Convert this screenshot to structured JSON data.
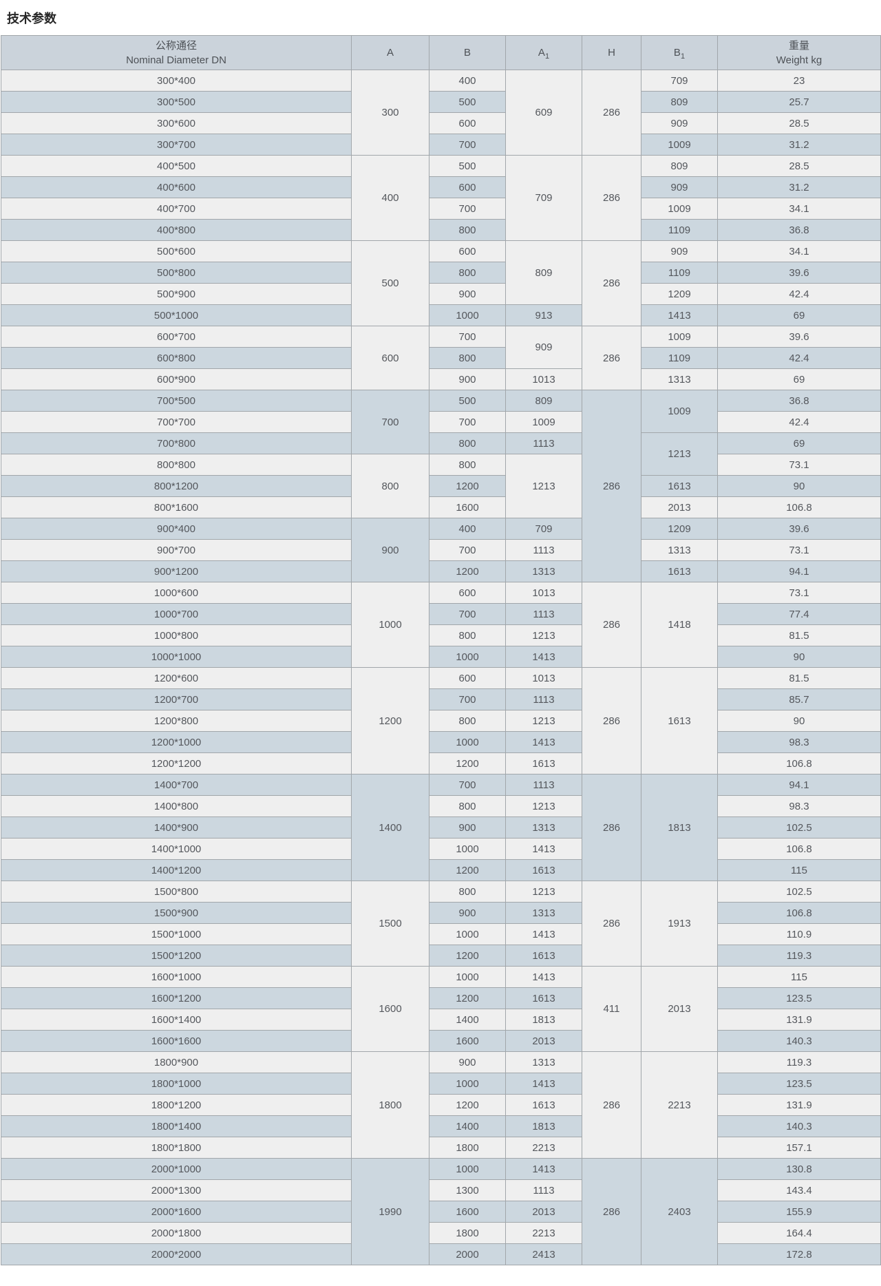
{
  "page_title": "技术参数",
  "colors": {
    "row_light": "#efefef",
    "row_dark": "#ccd7df",
    "header_bg": "#cbd3db",
    "border": "#a1a6aa",
    "text": "#54575c"
  },
  "table": {
    "headers": [
      {
        "line1": "公称通径",
        "line2": "Nominal Diameter DN"
      },
      {
        "label": "A"
      },
      {
        "label": "B"
      },
      {
        "label": "A",
        "sub": "1"
      },
      {
        "label": "H"
      },
      {
        "label": "B",
        "sub": "1"
      },
      {
        "line1": "重量",
        "line2": "Weight kg"
      }
    ],
    "rows": [
      {
        "cells": [
          {
            "v": "300*400"
          },
          {
            "v": 300,
            "rs": 4
          },
          {
            "v": 400
          },
          {
            "v": 609,
            "rs": 4
          },
          {
            "v": 286,
            "rs": 4
          },
          {
            "v": 709
          },
          {
            "v": 23
          }
        ]
      },
      {
        "cells": [
          {
            "v": "300*500"
          },
          {
            "v": 500
          },
          {
            "v": 809
          },
          {
            "v": 25.7
          }
        ]
      },
      {
        "cells": [
          {
            "v": "300*600"
          },
          {
            "v": 600
          },
          {
            "v": 909
          },
          {
            "v": 28.5
          }
        ]
      },
      {
        "cells": [
          {
            "v": "300*700"
          },
          {
            "v": 700
          },
          {
            "v": 1009
          },
          {
            "v": 31.2
          }
        ]
      },
      {
        "cells": [
          {
            "v": "400*500"
          },
          {
            "v": 400,
            "rs": 4
          },
          {
            "v": 500
          },
          {
            "v": 709,
            "rs": 4
          },
          {
            "v": 286,
            "rs": 4
          },
          {
            "v": 809
          },
          {
            "v": 28.5
          }
        ]
      },
      {
        "cells": [
          {
            "v": "400*600"
          },
          {
            "v": 600
          },
          {
            "v": 909
          },
          {
            "v": 31.2
          }
        ]
      },
      {
        "cells": [
          {
            "v": "400*700"
          },
          {
            "v": 700
          },
          {
            "v": 1009
          },
          {
            "v": 34.1
          }
        ]
      },
      {
        "cells": [
          {
            "v": "400*800"
          },
          {
            "v": 800
          },
          {
            "v": 1109
          },
          {
            "v": 36.8
          }
        ]
      },
      {
        "cells": [
          {
            "v": "500*600"
          },
          {
            "v": 500,
            "rs": 4
          },
          {
            "v": 600
          },
          {
            "v": 809,
            "rs": 3
          },
          {
            "v": 286,
            "rs": 4
          },
          {
            "v": 909
          },
          {
            "v": 34.1
          }
        ]
      },
      {
        "cells": [
          {
            "v": "500*800"
          },
          {
            "v": 800
          },
          {
            "v": 1109
          },
          {
            "v": 39.6
          }
        ]
      },
      {
        "cells": [
          {
            "v": "500*900"
          },
          {
            "v": 900
          },
          {
            "v": 1209
          },
          {
            "v": 42.4
          }
        ]
      },
      {
        "cells": [
          {
            "v": "500*1000"
          },
          {
            "v": 1000
          },
          {
            "v": 913
          },
          {
            "v": 1413
          },
          {
            "v": 69
          }
        ]
      },
      {
        "cells": [
          {
            "v": "600*700"
          },
          {
            "v": 600,
            "rs": 3
          },
          {
            "v": 700
          },
          {
            "v": 909,
            "rs": 2
          },
          {
            "v": 286,
            "rs": 3
          },
          {
            "v": 1009
          },
          {
            "v": 39.6
          }
        ]
      },
      {
        "cells": [
          {
            "v": "600*800"
          },
          {
            "v": 800
          },
          {
            "v": 1109
          },
          {
            "v": 42.4
          }
        ]
      },
      {
        "cells": [
          {
            "v": "600*900"
          },
          {
            "v": 900
          },
          {
            "v": 1013
          },
          {
            "v": 1313
          },
          {
            "v": 69
          }
        ]
      },
      {
        "cells": [
          {
            "v": "700*500"
          },
          {
            "v": 700,
            "rs": 3
          },
          {
            "v": 500
          },
          {
            "v": 809
          },
          {
            "v": 286,
            "rs": 9
          },
          {
            "v": 1009,
            "rs": 2
          },
          {
            "v": 36.8
          }
        ]
      },
      {
        "cells": [
          {
            "v": "700*700"
          },
          {
            "v": 700
          },
          {
            "v": 1009
          },
          {
            "v": 42.4
          }
        ]
      },
      {
        "cells": [
          {
            "v": "700*800"
          },
          {
            "v": 800
          },
          {
            "v": 1113
          },
          {
            "v": 1213,
            "rs": 2
          },
          {
            "v": 69
          }
        ]
      },
      {
        "cells": [
          {
            "v": "800*800"
          },
          {
            "v": 800,
            "rs": 3
          },
          {
            "v": 800
          },
          {
            "v": 1213,
            "rs": 3
          },
          {
            "v": 73.1
          }
        ]
      },
      {
        "cells": [
          {
            "v": "800*1200"
          },
          {
            "v": 1200
          },
          {
            "v": 1613
          },
          {
            "v": 90
          }
        ]
      },
      {
        "cells": [
          {
            "v": "800*1600"
          },
          {
            "v": 1600
          },
          {
            "v": 2013
          },
          {
            "v": 106.8
          }
        ]
      },
      {
        "cells": [
          {
            "v": "900*400"
          },
          {
            "v": 900,
            "rs": 3
          },
          {
            "v": 400
          },
          {
            "v": 709
          },
          {
            "v": 1209
          },
          {
            "v": 39.6
          }
        ]
      },
      {
        "cells": [
          {
            "v": "900*700"
          },
          {
            "v": 700
          },
          {
            "v": 1113
          },
          {
            "v": 1313
          },
          {
            "v": 73.1
          }
        ]
      },
      {
        "cells": [
          {
            "v": "900*1200"
          },
          {
            "v": 1200
          },
          {
            "v": 1313
          },
          {
            "v": 1613
          },
          {
            "v": 94.1
          }
        ]
      },
      {
        "cells": [
          {
            "v": "1000*600"
          },
          {
            "v": 1000,
            "rs": 4
          },
          {
            "v": 600
          },
          {
            "v": 1013
          },
          {
            "v": 286,
            "rs": 4
          },
          {
            "v": 1418,
            "rs": 4
          },
          {
            "v": 73.1
          }
        ]
      },
      {
        "cells": [
          {
            "v": "1000*700"
          },
          {
            "v": 700
          },
          {
            "v": 1113
          },
          {
            "v": 77.4
          }
        ]
      },
      {
        "cells": [
          {
            "v": "1000*800"
          },
          {
            "v": 800
          },
          {
            "v": 1213
          },
          {
            "v": 81.5
          }
        ]
      },
      {
        "cells": [
          {
            "v": "1000*1000"
          },
          {
            "v": 1000
          },
          {
            "v": 1413
          },
          {
            "v": 90
          }
        ]
      },
      {
        "cells": [
          {
            "v": "1200*600"
          },
          {
            "v": 1200,
            "rs": 5
          },
          {
            "v": 600
          },
          {
            "v": 1013
          },
          {
            "v": 286,
            "rs": 5
          },
          {
            "v": 1613,
            "rs": 5
          },
          {
            "v": 81.5
          }
        ]
      },
      {
        "cells": [
          {
            "v": "1200*700"
          },
          {
            "v": 700
          },
          {
            "v": 1113
          },
          {
            "v": 85.7
          }
        ]
      },
      {
        "cells": [
          {
            "v": "1200*800"
          },
          {
            "v": 800
          },
          {
            "v": 1213
          },
          {
            "v": 90
          }
        ]
      },
      {
        "cells": [
          {
            "v": "1200*1000"
          },
          {
            "v": 1000
          },
          {
            "v": 1413
          },
          {
            "v": 98.3
          }
        ]
      },
      {
        "cells": [
          {
            "v": "1200*1200"
          },
          {
            "v": 1200
          },
          {
            "v": 1613
          },
          {
            "v": 106.8
          }
        ]
      },
      {
        "cells": [
          {
            "v": "1400*700"
          },
          {
            "v": 1400,
            "rs": 5
          },
          {
            "v": 700
          },
          {
            "v": 1113
          },
          {
            "v": 286,
            "rs": 5
          },
          {
            "v": 1813,
            "rs": 5
          },
          {
            "v": 94.1
          }
        ]
      },
      {
        "cells": [
          {
            "v": "1400*800"
          },
          {
            "v": 800
          },
          {
            "v": 1213
          },
          {
            "v": 98.3
          }
        ]
      },
      {
        "cells": [
          {
            "v": "1400*900"
          },
          {
            "v": 900
          },
          {
            "v": 1313
          },
          {
            "v": 102.5
          }
        ]
      },
      {
        "cells": [
          {
            "v": "1400*1000"
          },
          {
            "v": 1000
          },
          {
            "v": 1413
          },
          {
            "v": 106.8
          }
        ]
      },
      {
        "cells": [
          {
            "v": "1400*1200"
          },
          {
            "v": 1200
          },
          {
            "v": 1613
          },
          {
            "v": 115
          }
        ]
      },
      {
        "cells": [
          {
            "v": "1500*800"
          },
          {
            "v": 1500,
            "rs": 4
          },
          {
            "v": 800
          },
          {
            "v": 1213
          },
          {
            "v": 286,
            "rs": 4
          },
          {
            "v": 1913,
            "rs": 4
          },
          {
            "v": 102.5
          }
        ]
      },
      {
        "cells": [
          {
            "v": "1500*900"
          },
          {
            "v": 900
          },
          {
            "v": 1313
          },
          {
            "v": 106.8
          }
        ]
      },
      {
        "cells": [
          {
            "v": "1500*1000"
          },
          {
            "v": 1000
          },
          {
            "v": 1413
          },
          {
            "v": 110.9
          }
        ]
      },
      {
        "cells": [
          {
            "v": "1500*1200"
          },
          {
            "v": 1200
          },
          {
            "v": 1613
          },
          {
            "v": 119.3
          }
        ]
      },
      {
        "cells": [
          {
            "v": "1600*1000"
          },
          {
            "v": 1600,
            "rs": 4
          },
          {
            "v": 1000
          },
          {
            "v": 1413
          },
          {
            "v": 411,
            "rs": 4
          },
          {
            "v": 2013,
            "rs": 4
          },
          {
            "v": 115
          }
        ]
      },
      {
        "cells": [
          {
            "v": "1600*1200"
          },
          {
            "v": 1200
          },
          {
            "v": 1613
          },
          {
            "v": 123.5
          }
        ]
      },
      {
        "cells": [
          {
            "v": "1600*1400"
          },
          {
            "v": 1400
          },
          {
            "v": 1813
          },
          {
            "v": 131.9
          }
        ]
      },
      {
        "cells": [
          {
            "v": "1600*1600"
          },
          {
            "v": 1600
          },
          {
            "v": 2013
          },
          {
            "v": 140.3
          }
        ]
      },
      {
        "cells": [
          {
            "v": "1800*900"
          },
          {
            "v": 1800,
            "rs": 5
          },
          {
            "v": 900
          },
          {
            "v": 1313
          },
          {
            "v": 286,
            "rs": 5
          },
          {
            "v": 2213,
            "rs": 5
          },
          {
            "v": 119.3
          }
        ]
      },
      {
        "cells": [
          {
            "v": "1800*1000"
          },
          {
            "v": 1000
          },
          {
            "v": 1413
          },
          {
            "v": 123.5
          }
        ]
      },
      {
        "cells": [
          {
            "v": "1800*1200"
          },
          {
            "v": 1200
          },
          {
            "v": 1613
          },
          {
            "v": 131.9
          }
        ]
      },
      {
        "cells": [
          {
            "v": "1800*1400"
          },
          {
            "v": 1400
          },
          {
            "v": 1813
          },
          {
            "v": 140.3
          }
        ]
      },
      {
        "cells": [
          {
            "v": "1800*1800"
          },
          {
            "v": 1800
          },
          {
            "v": 2213
          },
          {
            "v": 157.1
          }
        ]
      },
      {
        "cells": [
          {
            "v": "2000*1000"
          },
          {
            "v": 1990,
            "rs": 5
          },
          {
            "v": 1000
          },
          {
            "v": 1413
          },
          {
            "v": 286,
            "rs": 5
          },
          {
            "v": 2403,
            "rs": 5
          },
          {
            "v": 130.8
          }
        ]
      },
      {
        "cells": [
          {
            "v": "2000*1300"
          },
          {
            "v": 1300
          },
          {
            "v": 1113
          },
          {
            "v": 143.4
          }
        ]
      },
      {
        "cells": [
          {
            "v": "2000*1600"
          },
          {
            "v": 1600
          },
          {
            "v": 2013
          },
          {
            "v": 155.9
          }
        ]
      },
      {
        "cells": [
          {
            "v": "2000*1800"
          },
          {
            "v": 1800
          },
          {
            "v": 2213
          },
          {
            "v": 164.4
          }
        ]
      },
      {
        "cells": [
          {
            "v": "2000*2000"
          },
          {
            "v": 2000
          },
          {
            "v": 2413
          },
          {
            "v": 172.8
          }
        ]
      }
    ]
  }
}
